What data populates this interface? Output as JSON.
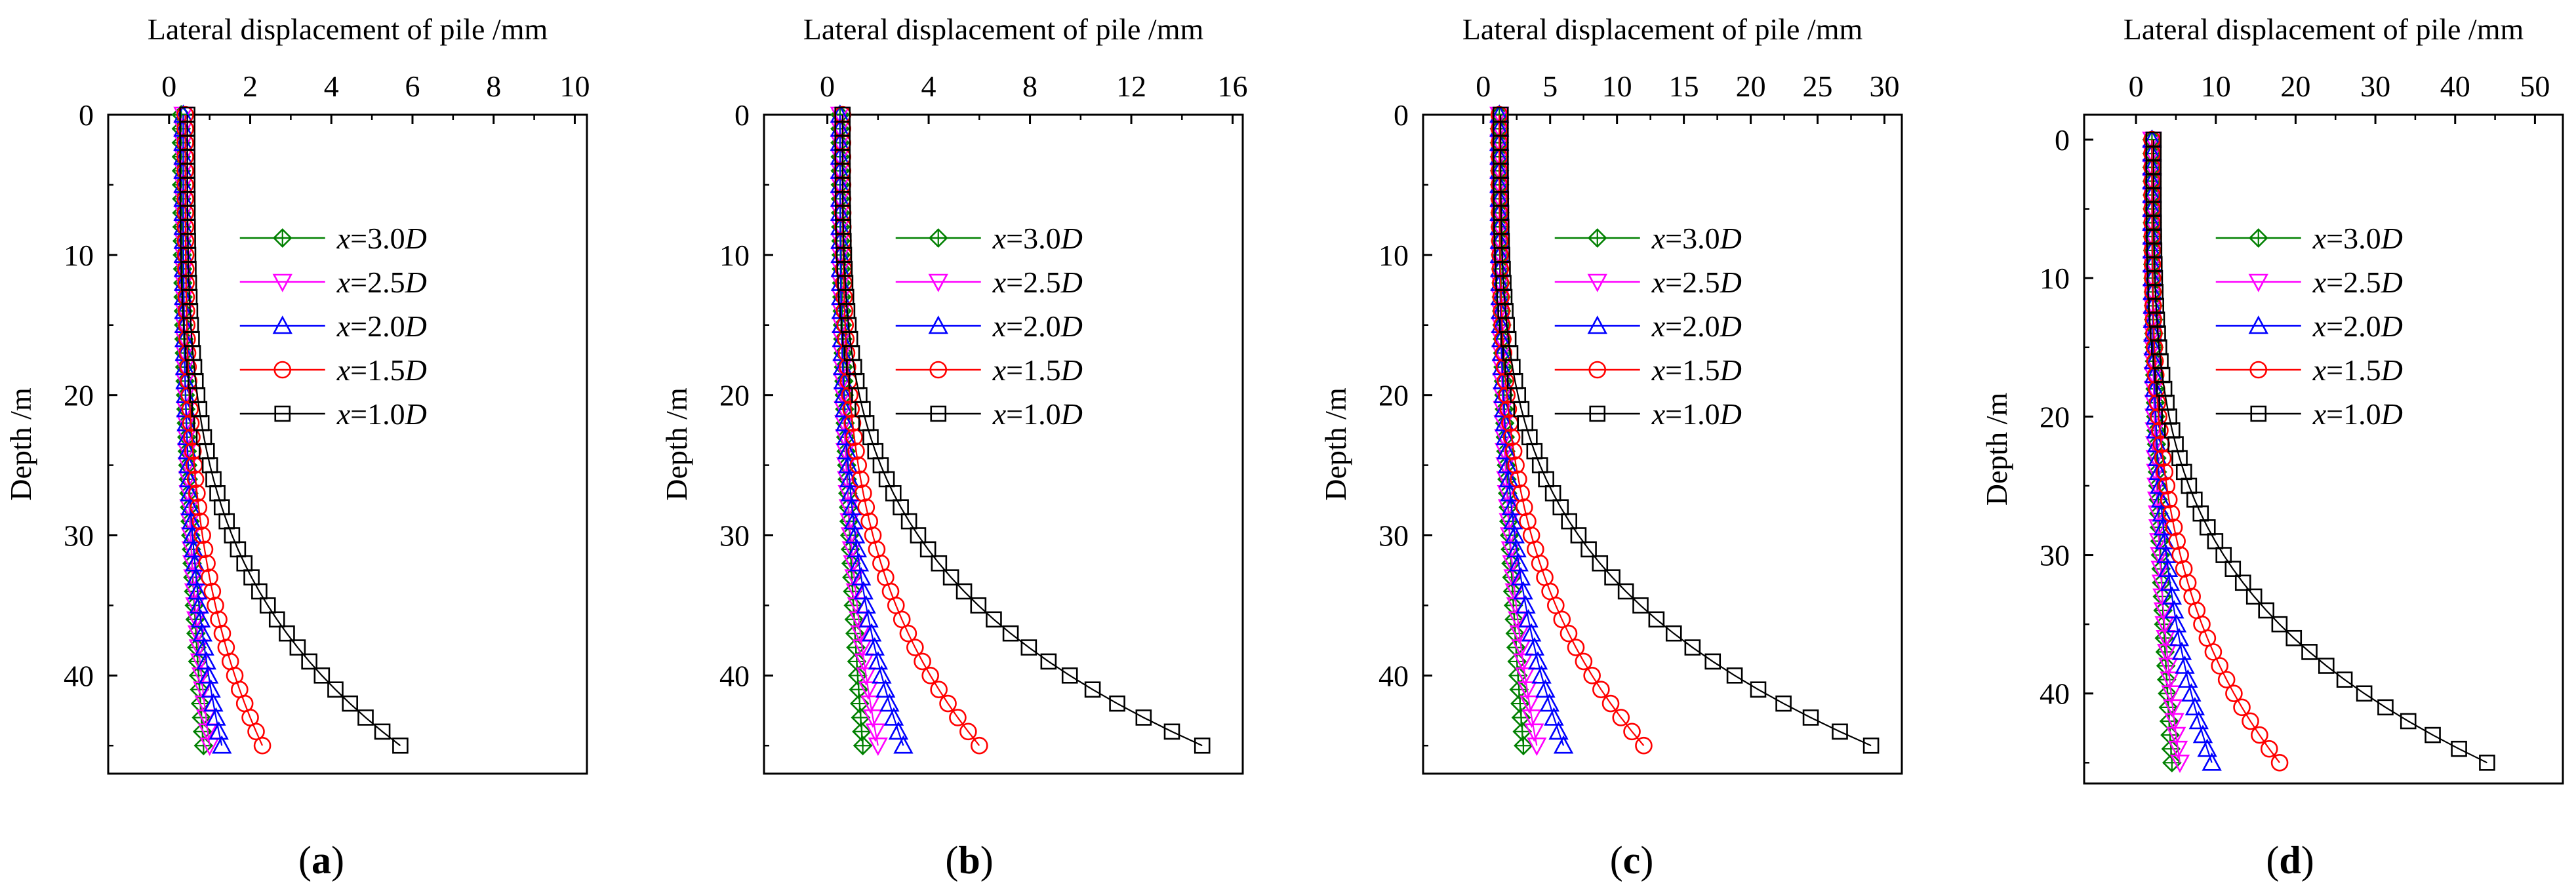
{
  "figure": {
    "shared": {
      "xlabel": "Lateral displacement of pile /mm",
      "ylabel": "Depth /m",
      "ylim": [
        0,
        47
      ],
      "yticks": [
        0,
        10,
        20,
        30,
        40
      ],
      "series_styles": [
        {
          "name": "x=1.0D",
          "var": "x",
          "eq": "=1.0",
          "D": "D",
          "color": "#000000",
          "marker": "square"
        },
        {
          "name": "x=1.5D",
          "var": "x",
          "eq": "=1.5",
          "D": "D",
          "color": "#ff0000",
          "marker": "circle"
        },
        {
          "name": "x=2.0D",
          "var": "x",
          "eq": "=2.0",
          "D": "D",
          "color": "#0000ff",
          "marker": "triangle-up"
        },
        {
          "name": "x=2.5D",
          "var": "x",
          "eq": "=2.5",
          "D": "D",
          "color": "#ff00ff",
          "marker": "triangle-down"
        },
        {
          "name": "x=3.0D",
          "var": "x",
          "eq": "=3.0",
          "D": "D",
          "color": "#008000",
          "marker": "crossed-diamond"
        }
      ]
    }
  },
  "chart_data": [
    {
      "type": "line",
      "panel_label": {
        "open": "(",
        "letter": "a",
        "close": ")"
      },
      "title": "",
      "xlabel": "Lateral displacement of pile /mm",
      "ylabel": "Depth /m",
      "xlim": [
        -1.5,
        10.3
      ],
      "xticks": [
        "0",
        "2",
        "4",
        "6",
        "8",
        "10"
      ],
      "xtick_values": [
        0,
        2,
        4,
        6,
        8,
        10
      ],
      "ylim": [
        0,
        47
      ],
      "yticks": [
        "0",
        "10",
        "20",
        "30",
        "40"
      ],
      "legend_position": "upper-right",
      "depth_max": 45,
      "series": [
        {
          "name": "x=3.0D",
          "surface": 0.3,
          "tip": 0.85,
          "knee": 0.7,
          "power": 1.8
        },
        {
          "name": "x=2.5D",
          "surface": 0.35,
          "tip": 1.0,
          "knee": 0.4,
          "power": 2.5
        },
        {
          "name": "x=2.0D",
          "surface": 0.35,
          "tip": 1.3,
          "knee": 0.35,
          "power": 2.8
        },
        {
          "name": "x=1.5D",
          "surface": 0.4,
          "tip": 2.3,
          "knee": 0.35,
          "power": 3.0
        },
        {
          "name": "x=1.0D",
          "surface": 0.45,
          "tip": 5.7,
          "knee": 0.4,
          "power": 3.2
        }
      ]
    },
    {
      "type": "line",
      "panel_label": {
        "open": "(",
        "letter": "b",
        "close": ")"
      },
      "title": "",
      "xlabel": "Lateral displacement of pile /mm",
      "ylabel": "Depth /m",
      "xlim": [
        -2.5,
        16.4
      ],
      "xticks": [
        "0",
        "4",
        "8",
        "12",
        "16"
      ],
      "xtick_values": [
        0,
        4,
        8,
        12,
        16
      ],
      "ylim": [
        0,
        47
      ],
      "yticks": [
        "0",
        "10",
        "20",
        "30",
        "40"
      ],
      "legend_position": "upper-right",
      "depth_max": 45,
      "series": [
        {
          "name": "x=3.0D",
          "surface": 0.5,
          "tip": 1.4,
          "knee": 0.7,
          "power": 1.8
        },
        {
          "name": "x=2.5D",
          "surface": 0.5,
          "tip": 2.0,
          "knee": 0.4,
          "power": 2.5
        },
        {
          "name": "x=2.0D",
          "surface": 0.5,
          "tip": 3.0,
          "knee": 0.35,
          "power": 2.8
        },
        {
          "name": "x=1.5D",
          "surface": 0.6,
          "tip": 6.0,
          "knee": 0.35,
          "power": 3.0
        },
        {
          "name": "x=1.0D",
          "surface": 0.6,
          "tip": 14.8,
          "knee": 0.4,
          "power": 3.2
        }
      ]
    },
    {
      "type": "line",
      "panel_label": {
        "open": "(",
        "letter": "c",
        "close": ")"
      },
      "title": "",
      "xlabel": "Lateral displacement of pile /mm",
      "ylabel": "Depth /m",
      "xlim": [
        -4.5,
        31.3
      ],
      "xticks": [
        "0",
        "5",
        "10",
        "15",
        "20",
        "25",
        "30"
      ],
      "xtick_values": [
        0,
        5,
        10,
        15,
        20,
        25,
        30
      ],
      "ylim": [
        0,
        47
      ],
      "yticks": [
        "0",
        "10",
        "20",
        "30",
        "40"
      ],
      "legend_position": "upper-right",
      "depth_max": 45,
      "series": [
        {
          "name": "x=3.0D",
          "surface": 1.2,
          "tip": 3.0,
          "knee": 0.7,
          "power": 1.8
        },
        {
          "name": "x=2.5D",
          "surface": 1.2,
          "tip": 4.0,
          "knee": 0.4,
          "power": 2.5
        },
        {
          "name": "x=2.0D",
          "surface": 1.2,
          "tip": 6.0,
          "knee": 0.35,
          "power": 2.8
        },
        {
          "name": "x=1.5D",
          "surface": 1.2,
          "tip": 12.0,
          "knee": 0.35,
          "power": 3.0
        },
        {
          "name": "x=1.0D",
          "surface": 1.3,
          "tip": 29.0,
          "knee": 0.4,
          "power": 3.2
        }
      ]
    },
    {
      "type": "line",
      "panel_label": {
        "open": "(",
        "letter": "d",
        "close": ")"
      },
      "title": "",
      "xlabel": "Lateral displacement of pile /mm",
      "ylabel": "Depth /m",
      "xlim": [
        -6.5,
        53.5
      ],
      "xticks": [
        "0",
        "10",
        "20",
        "30",
        "40",
        "50"
      ],
      "xtick_values": [
        0,
        10,
        20,
        30,
        40,
        50
      ],
      "ylim": [
        -1.8,
        46.5
      ],
      "yticks": [
        "0",
        "10",
        "20",
        "30",
        "40"
      ],
      "legend_position": "upper-right",
      "depth_max": 45,
      "series": [
        {
          "name": "x=3.0D",
          "surface": 2.0,
          "tip": 4.5,
          "knee": 0.7,
          "power": 1.8
        },
        {
          "name": "x=2.5D",
          "surface": 2.0,
          "tip": 5.5,
          "knee": 0.4,
          "power": 2.5
        },
        {
          "name": "x=2.0D",
          "surface": 2.0,
          "tip": 9.5,
          "knee": 0.35,
          "power": 2.8
        },
        {
          "name": "x=1.5D",
          "surface": 2.0,
          "tip": 18.0,
          "knee": 0.35,
          "power": 3.0
        },
        {
          "name": "x=1.0D",
          "surface": 2.2,
          "tip": 44.0,
          "knee": 0.4,
          "power": 3.2
        }
      ]
    }
  ]
}
